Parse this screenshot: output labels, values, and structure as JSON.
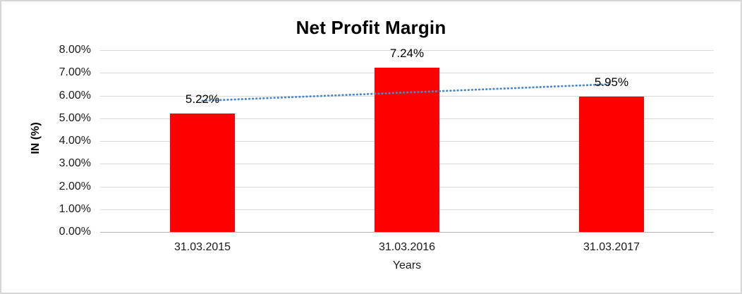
{
  "chart_data": {
    "type": "bar",
    "title": "Net Profit Margin",
    "categories": [
      "31.03.2015",
      "31.03.2016",
      "31.03.2017"
    ],
    "values": [
      5.22,
      7.24,
      5.95
    ],
    "data_labels": [
      "5.22%",
      "7.24%",
      "5.95%"
    ],
    "xlabel": "Years",
    "ylabel": "IN (%)",
    "ylim": [
      0,
      8
    ],
    "ytick_labels": [
      "0.00%",
      "1.00%",
      "2.00%",
      "3.00%",
      "4.00%",
      "5.00%",
      "6.00%",
      "7.00%",
      "8.00%"
    ],
    "grid": true,
    "legend": false,
    "bar_color": "#ff0000",
    "gridline_color": "#d9d9d9",
    "axis_line_color": "#b5b5b5",
    "text_color": "#1a1a1a",
    "trendline": {
      "type": "linear",
      "style": "dotted",
      "color": "#4a86c8",
      "start_value": 5.77,
      "end_value": 6.5
    }
  }
}
